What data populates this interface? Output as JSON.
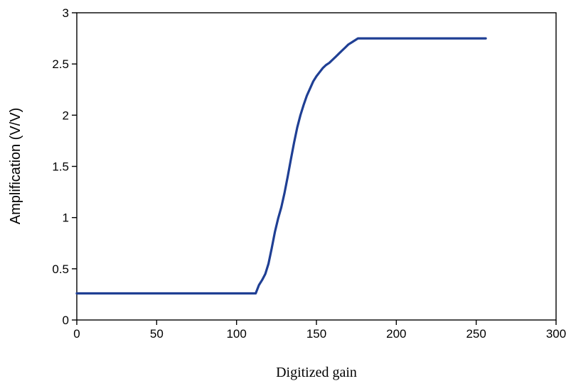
{
  "chart_data": {
    "type": "line",
    "title": "",
    "xlabel": "Digitized gain",
    "ylabel": "Amplification (V/V)",
    "xlim": [
      0,
      300
    ],
    "ylim": [
      0,
      3
    ],
    "xticks": [
      0,
      50,
      100,
      150,
      200,
      250,
      300
    ],
    "xtick_labels": [
      "0",
      "50",
      "100",
      "150",
      "200",
      "250",
      "300"
    ],
    "yticks": [
      0,
      0.5,
      1,
      1.5,
      2,
      2.5,
      3
    ],
    "ytick_labels": [
      "0",
      "0.5",
      "1",
      "1.5",
      "2",
      "2.5",
      "3"
    ],
    "grid": false,
    "legend": "none",
    "series": [
      {
        "color": "#1f3f94",
        "x": [
          0,
          50,
          100,
          112,
          114,
          116,
          118,
          120,
          122,
          124,
          126,
          128,
          130,
          132,
          134,
          136,
          138,
          140,
          142,
          144,
          146,
          148,
          150,
          152,
          154,
          156,
          158,
          160,
          162,
          164,
          166,
          168,
          170,
          172,
          174,
          176,
          180,
          200,
          220,
          240,
          256
        ],
        "y": [
          0.26,
          0.26,
          0.26,
          0.26,
          0.34,
          0.39,
          0.45,
          0.55,
          0.7,
          0.86,
          0.99,
          1.1,
          1.24,
          1.4,
          1.57,
          1.73,
          1.88,
          2.0,
          2.1,
          2.19,
          2.26,
          2.33,
          2.38,
          2.42,
          2.46,
          2.49,
          2.51,
          2.54,
          2.57,
          2.6,
          2.63,
          2.66,
          2.69,
          2.71,
          2.73,
          2.75,
          2.75,
          2.75,
          2.75,
          2.75,
          2.75
        ]
      }
    ]
  }
}
